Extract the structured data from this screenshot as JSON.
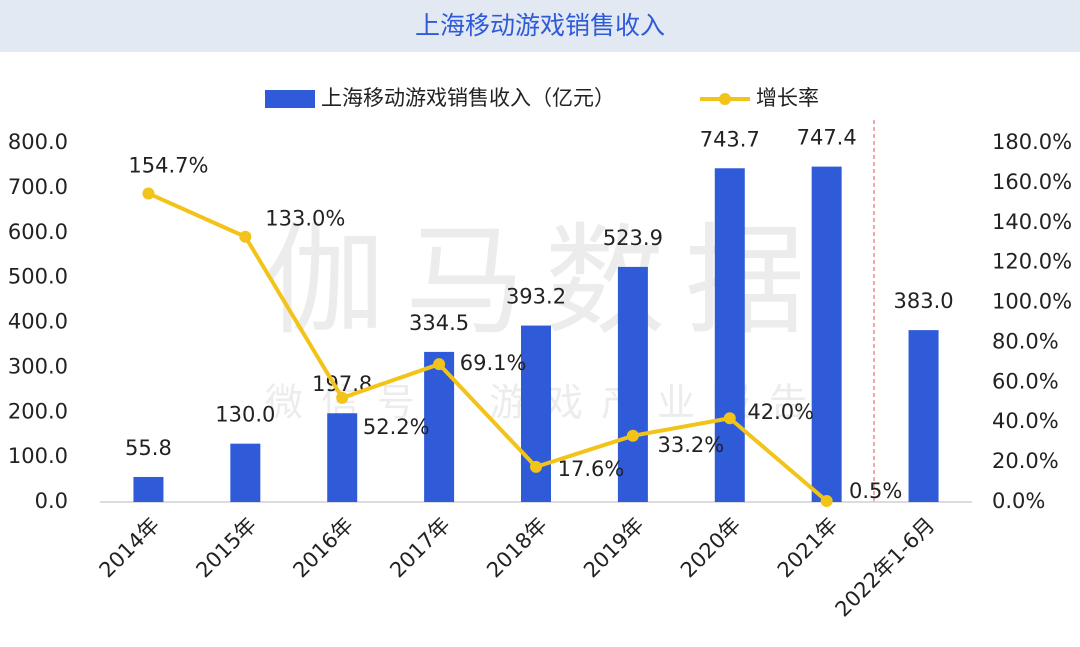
{
  "chart_data": {
    "type": "bar_line",
    "title": "上海移动游戏销售收入",
    "watermark": "伽马数据",
    "watermark_sub": "微信号：游戏产业报告",
    "categories": [
      "2014年",
      "2015年",
      "2016年",
      "2017年",
      "2018年",
      "2019年",
      "2020年",
      "2021年",
      "2022年1-6月"
    ],
    "series": [
      {
        "name": "上海移动游戏销售收入（亿元）",
        "type": "bar",
        "color": "#2f5bd9",
        "values": [
          55.8,
          130.0,
          197.8,
          334.5,
          393.2,
          523.9,
          743.7,
          747.4,
          383.0
        ],
        "value_labels": [
          "55.8",
          "130.0",
          "197.8",
          "334.5",
          "393.2",
          "523.9",
          "743.7",
          "747.4",
          "383.0"
        ]
      },
      {
        "name": "增长率",
        "type": "line",
        "axis": "y2",
        "color": "#f2c318",
        "values": [
          154.7,
          133.0,
          52.2,
          69.1,
          17.6,
          33.2,
          42.0,
          0.5,
          null
        ],
        "value_labels": [
          "154.7%",
          "133.0%",
          "52.2%",
          "69.1%",
          "17.6%",
          "33.2%",
          "42.0%",
          "0.5%",
          null
        ]
      }
    ],
    "ylim": [
      0,
      800
    ],
    "yticks": [
      {
        "value": 0,
        "label": "0.0"
      },
      {
        "value": 100,
        "label": "100.0"
      },
      {
        "value": 200,
        "label": "200.0"
      },
      {
        "value": 300,
        "label": "300.0"
      },
      {
        "value": 400,
        "label": "400.0"
      },
      {
        "value": 500,
        "label": "500.0"
      },
      {
        "value": 600,
        "label": "600.0"
      },
      {
        "value": 700,
        "label": "700.0"
      },
      {
        "value": 800,
        "label": "800.0"
      }
    ],
    "y2lim": [
      0,
      180
    ],
    "y2ticks": [
      {
        "value": 0,
        "label": "0.0%"
      },
      {
        "value": 20,
        "label": "20.0%"
      },
      {
        "value": 40,
        "label": "40.0%"
      },
      {
        "value": 60,
        "label": "60.0%"
      },
      {
        "value": 80,
        "label": "80.0%"
      },
      {
        "value": 100,
        "label": "100.0%"
      },
      {
        "value": 120,
        "label": "120.0%"
      },
      {
        "value": 140,
        "label": "140.0%"
      },
      {
        "value": 160,
        "label": "160.0%"
      },
      {
        "value": 180,
        "label": "180.0%"
      }
    ],
    "legend": "top",
    "grid": false
  }
}
